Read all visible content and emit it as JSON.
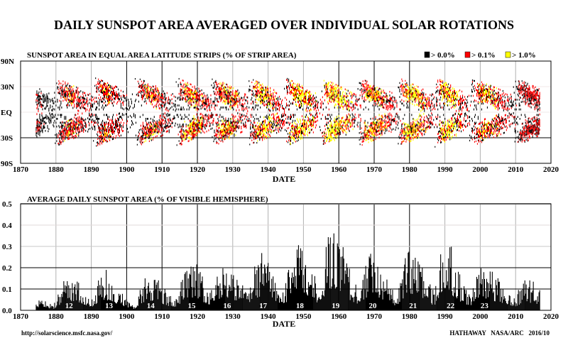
{
  "title": "DAILY SUNSPOT AREA AVERAGED OVER INDIVIDUAL SOLAR ROTATIONS",
  "footer_left": "http://solarscience.msfc.nasa.gov/",
  "footer_right": "HATHAWAY   NASA/ARC   2016/10",
  "chart_data": [
    {
      "type": "heatmap",
      "title": "SUNSPOT AREA IN EQUAL AREA LATITUDE STRIPS (% OF STRIP AREA)",
      "xlabel": "DATE",
      "xlim": [
        1870,
        2020
      ],
      "x_ticks": [
        "1870",
        "1880",
        "1890",
        "1900",
        "1910",
        "1920",
        "1930",
        "1940",
        "1950",
        "1960",
        "1970",
        "1980",
        "1990",
        "2000",
        "2010",
        "2020"
      ],
      "y_scale": "sine of latitude (equal area)",
      "y_ticks": [
        "90N",
        "30N",
        "EQ",
        "30S",
        "90S"
      ],
      "legend": [
        {
          "label": "> 0.0%",
          "color": "#000000"
        },
        {
          "label": "> 0.1%",
          "color": "#ff0000"
        },
        {
          "label": "> 1.0%",
          "color": "#ffff00"
        }
      ],
      "legend_position": "top-right"
    },
    {
      "type": "bar",
      "title": "AVERAGE DAILY SUNSPOT AREA (% OF VISIBLE HEMISPHERE)",
      "xlabel": "DATE",
      "xlim": [
        1870,
        2020
      ],
      "ylim": [
        0,
        0.5
      ],
      "x_ticks": [
        "1870",
        "1880",
        "1890",
        "1900",
        "1910",
        "1920",
        "1930",
        "1940",
        "1950",
        "1960",
        "1970",
        "1980",
        "1990",
        "2000",
        "2010",
        "2020"
      ],
      "y_ticks": [
        "0.0",
        "0.1",
        "0.2",
        "0.3",
        "0.4",
        "0.5"
      ],
      "cycles": [
        {
          "number": "",
          "start": 1867.2,
          "max": 1872.0,
          "end": 1878.9,
          "peak_area": 0.1
        },
        {
          "number": "12",
          "start": 1878.9,
          "max": 1883.9,
          "end": 1890.2,
          "peak_area": 0.2
        },
        {
          "number": "13",
          "start": 1890.2,
          "max": 1894.0,
          "end": 1902.0,
          "peak_area": 0.21
        },
        {
          "number": "14",
          "start": 1902.0,
          "max": 1906.5,
          "end": 1913.6,
          "peak_area": 0.23
        },
        {
          "number": "15",
          "start": 1913.6,
          "max": 1918.0,
          "end": 1923.6,
          "peak_area": 0.3
        },
        {
          "number": "16",
          "start": 1923.6,
          "max": 1928.0,
          "end": 1933.8,
          "peak_area": 0.28
        },
        {
          "number": "17",
          "start": 1933.8,
          "max": 1938.5,
          "end": 1944.2,
          "peak_area": 0.31
        },
        {
          "number": "18",
          "start": 1944.2,
          "max": 1948.5,
          "end": 1954.3,
          "peak_area": 0.4
        },
        {
          "number": "19",
          "start": 1954.3,
          "max": 1958.5,
          "end": 1964.8,
          "peak_area": 0.49
        },
        {
          "number": "20",
          "start": 1964.8,
          "max": 1969.5,
          "end": 1976.2,
          "peak_area": 0.3
        },
        {
          "number": "21",
          "start": 1976.2,
          "max": 1980.5,
          "end": 1986.8,
          "peak_area": 0.37
        },
        {
          "number": "22",
          "start": 1986.8,
          "max": 1990.5,
          "end": 1996.4,
          "peak_area": 0.38
        },
        {
          "number": "23",
          "start": 1996.4,
          "max": 2001.5,
          "end": 2008.9,
          "peak_area": 0.26
        },
        {
          "number": "24",
          "start": 2008.9,
          "max": 2014.0,
          "end": 2020.0,
          "peak_area": 0.16
        }
      ],
      "data_end": 2016.8
    }
  ]
}
